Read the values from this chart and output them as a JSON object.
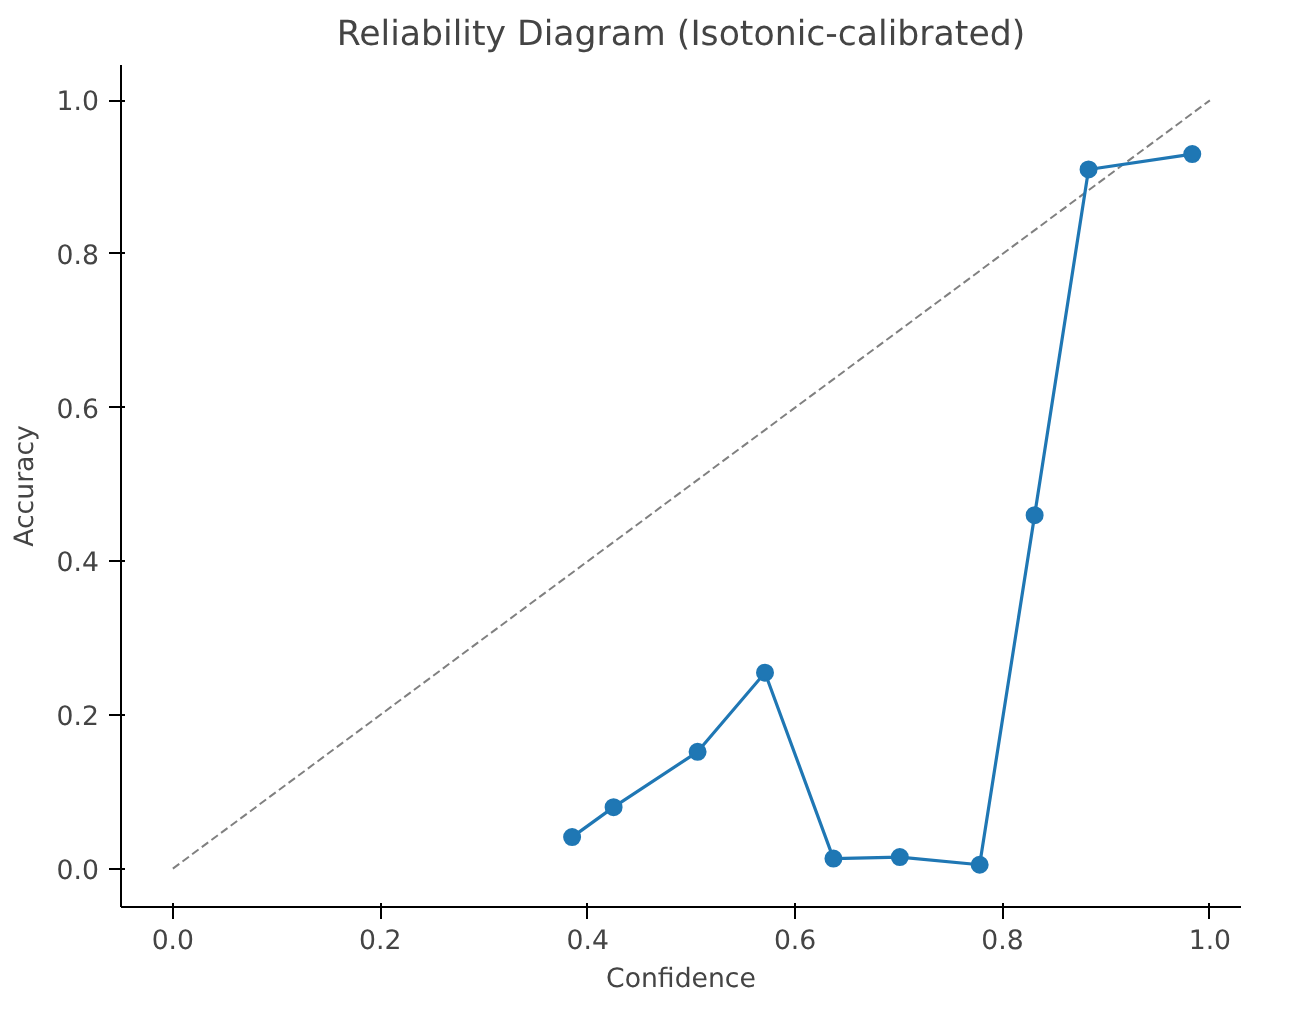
{
  "chart_data": {
    "type": "line",
    "title": "Reliability Diagram (Isotonic-calibrated)",
    "xlabel": "Confidence",
    "ylabel": "Accuracy",
    "xlim": [
      -0.05,
      1.03
    ],
    "ylim": [
      -0.05,
      1.046
    ],
    "xticks": [
      {
        "value": 0,
        "label": "0.0"
      },
      0.2,
      0.4,
      0.6,
      0.8,
      {
        "value": 1,
        "label": "1.0"
      }
    ],
    "yticks": [
      {
        "value": 0,
        "label": "0.0"
      },
      0.2,
      0.4,
      0.6,
      0.8,
      {
        "value": 1,
        "label": "1.0"
      }
    ],
    "grid": false,
    "series": [
      {
        "color": "#808080",
        "line_style": "dashed",
        "marker": "none",
        "x": [
          0,
          1
        ],
        "values": [
          0,
          1
        ]
      },
      {
        "color": "#1f77b4",
        "line_style": "solid",
        "marker": "circle",
        "x": [
          0.385,
          0.425,
          0.506,
          0.571,
          0.637,
          0.701,
          0.778,
          0.831,
          0.883,
          0.983
        ],
        "values": [
          0.041,
          0.08,
          0.152,
          0.255,
          0.013,
          0.015,
          0.005,
          0.46,
          0.91,
          0.93
        ]
      }
    ]
  }
}
